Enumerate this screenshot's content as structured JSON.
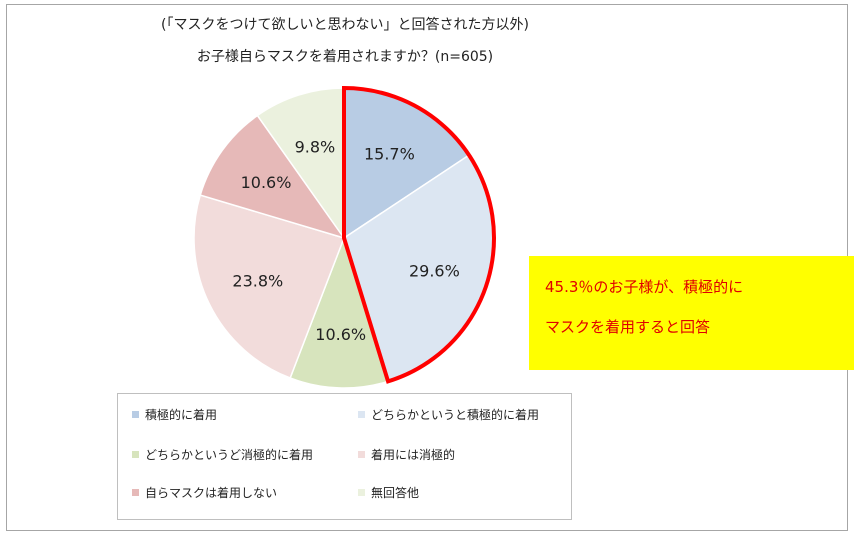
{
  "chart_data": {
    "type": "pie",
    "title": "(「マスクをつけて欲しいと思わない」と回答された方以外)",
    "subtitle": "お子様自らマスクを着用されますか？(n=605)",
    "legend_position": "bottom",
    "series": [
      {
        "name": "積極的に着用",
        "value": 15.7,
        "label": "15.7%",
        "color": "#b8cce4"
      },
      {
        "name": "どちらかというと積極的に着用",
        "value": 29.6,
        "label": "29.6%",
        "color": "#dce6f2"
      },
      {
        "name": "どちらかというど消極的に着用",
        "value": 10.6,
        "label": "10.6%",
        "color": "#d7e4bd"
      },
      {
        "name": "着用には消極的",
        "value": 23.8,
        "label": "23.8%",
        "color": "#f2dcdb"
      },
      {
        "name": "自らマスクは着用しない",
        "value": 10.6,
        "label": "10.6%",
        "color": "#e6b9b8"
      },
      {
        "name": "無回答他",
        "value": 9.8,
        "label": "9.8%",
        "color": "#ebf1de"
      }
    ],
    "highlight": {
      "series_indices": [
        0,
        1
      ],
      "color": "#ff0000"
    }
  },
  "callout": {
    "line1": "45.3％のお子様が、積極的に",
    "line2": "マスクを着用すると回答",
    "background": "#ffff00",
    "text_color": "#e00000"
  }
}
